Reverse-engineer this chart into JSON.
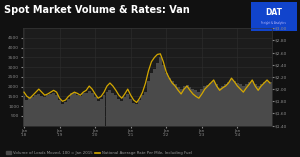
{
  "title": "Spot Market Volume & Rates: Van",
  "bg_color": "#111111",
  "plot_bg_color": "#1c1c1c",
  "grid_color": "#2e2e2e",
  "title_color": "#ffffff",
  "left_ylim": [
    0,
    5000
  ],
  "right_ylim": [
    1.4,
    3.0
  ],
  "left_yticks": [
    500,
    1000,
    1500,
    2000,
    2500,
    3000,
    3500,
    4000,
    4500
  ],
  "right_yticks": [
    1.4,
    1.6,
    1.8,
    2.0,
    2.2,
    2.4,
    2.6,
    2.8,
    3.0
  ],
  "legend1": "Volume of Loads Moved, 100 = Jan 2015",
  "legend2": "National Average Rate Per Mile, Including Fuel",
  "bar_color": "#4a4a4a",
  "line_color": "#d4a800",
  "n_points": 84,
  "volume_data": [
    1500,
    1300,
    1400,
    1450,
    1550,
    1600,
    1500,
    1450,
    1550,
    1600,
    1650,
    1550,
    1300,
    1100,
    1200,
    1350,
    1650,
    1700,
    1550,
    1500,
    1650,
    1700,
    1800,
    1700,
    1450,
    1250,
    1350,
    1550,
    1750,
    1850,
    1700,
    1550,
    1350,
    1250,
    1450,
    1600,
    1350,
    1150,
    1100,
    1300,
    1550,
    1750,
    2300,
    2700,
    2900,
    3200,
    3500,
    3100,
    2700,
    2450,
    2300,
    2150,
    2000,
    1900,
    2050,
    2100,
    2000,
    1900,
    1850,
    1750,
    1900,
    2050,
    2100,
    2200,
    2300,
    2150,
    1950,
    2050,
    2150,
    2250,
    2400,
    2300,
    2200,
    2150,
    2050,
    2150,
    2250,
    2300,
    2150,
    2050,
    2150,
    2250,
    2300,
    2250
  ],
  "rate_data": [
    1.95,
    1.88,
    1.85,
    1.9,
    1.95,
    2.0,
    1.95,
    1.9,
    1.92,
    1.95,
    1.98,
    1.95,
    1.85,
    1.8,
    1.82,
    1.88,
    1.92,
    1.95,
    1.93,
    1.9,
    1.95,
    1.98,
    2.05,
    2.0,
    1.92,
    1.85,
    1.88,
    1.95,
    2.05,
    2.1,
    2.05,
    1.98,
    1.9,
    1.85,
    1.92,
    2.0,
    1.9,
    1.82,
    1.78,
    1.85,
    1.95,
    2.1,
    2.3,
    2.45,
    2.52,
    2.57,
    2.58,
    2.45,
    2.28,
    2.18,
    2.1,
    2.05,
    1.98,
    1.92,
    2.0,
    2.05,
    1.98,
    1.92,
    1.88,
    1.85,
    1.92,
    2.0,
    2.05,
    2.1,
    2.15,
    2.05,
    1.98,
    2.02,
    2.05,
    2.1,
    2.18,
    2.12,
    2.05,
    2.0,
    1.95,
    2.02,
    2.08,
    2.15,
    2.05,
    1.98,
    2.05,
    2.1,
    2.15,
    2.1
  ],
  "xtick_positions": [
    0,
    12,
    24,
    36,
    48,
    60,
    72
  ],
  "xtick_labels": [
    "Jan\n'18",
    "Jan\n'19",
    "Jan\n'20",
    "Jan\n'21",
    "Jan\n'22",
    "Jan\n'23",
    "Jan\n'24"
  ]
}
